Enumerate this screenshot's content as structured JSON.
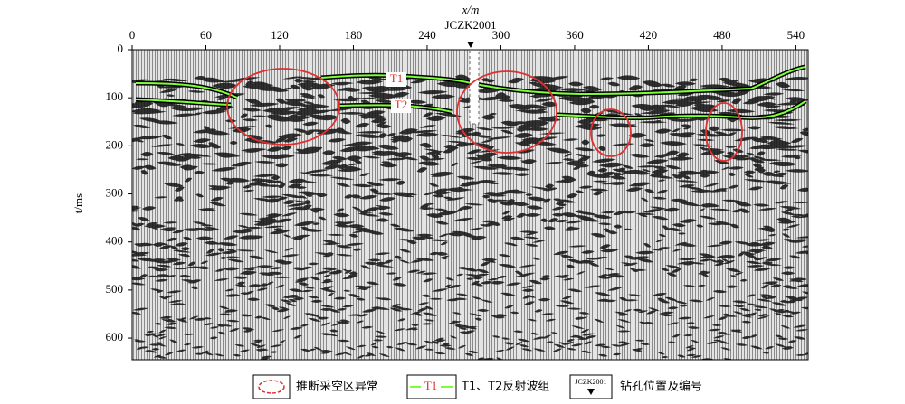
{
  "chart_data": {
    "type": "seismic-section",
    "x_label": "x/m",
    "y_label": "t/ms",
    "xlim": [
      0,
      550
    ],
    "xticks": [
      0,
      60,
      120,
      180,
      240,
      300,
      360,
      420,
      480,
      540
    ],
    "ylim": [
      0,
      645
    ],
    "yticks": [
      0,
      100,
      200,
      300,
      400,
      500,
      600
    ],
    "y_reversed": true,
    "borehole_label": "JCZK2001",
    "horizon_labels": [
      "T1",
      "T2"
    ],
    "legend": {
      "anomaly": "推断采空区异常",
      "horizon_symbol": "T1",
      "horizons": "T1、T2反射波组",
      "borehole_symbol": "JCZK2001",
      "borehole": "钻孔位置及编号"
    }
  }
}
